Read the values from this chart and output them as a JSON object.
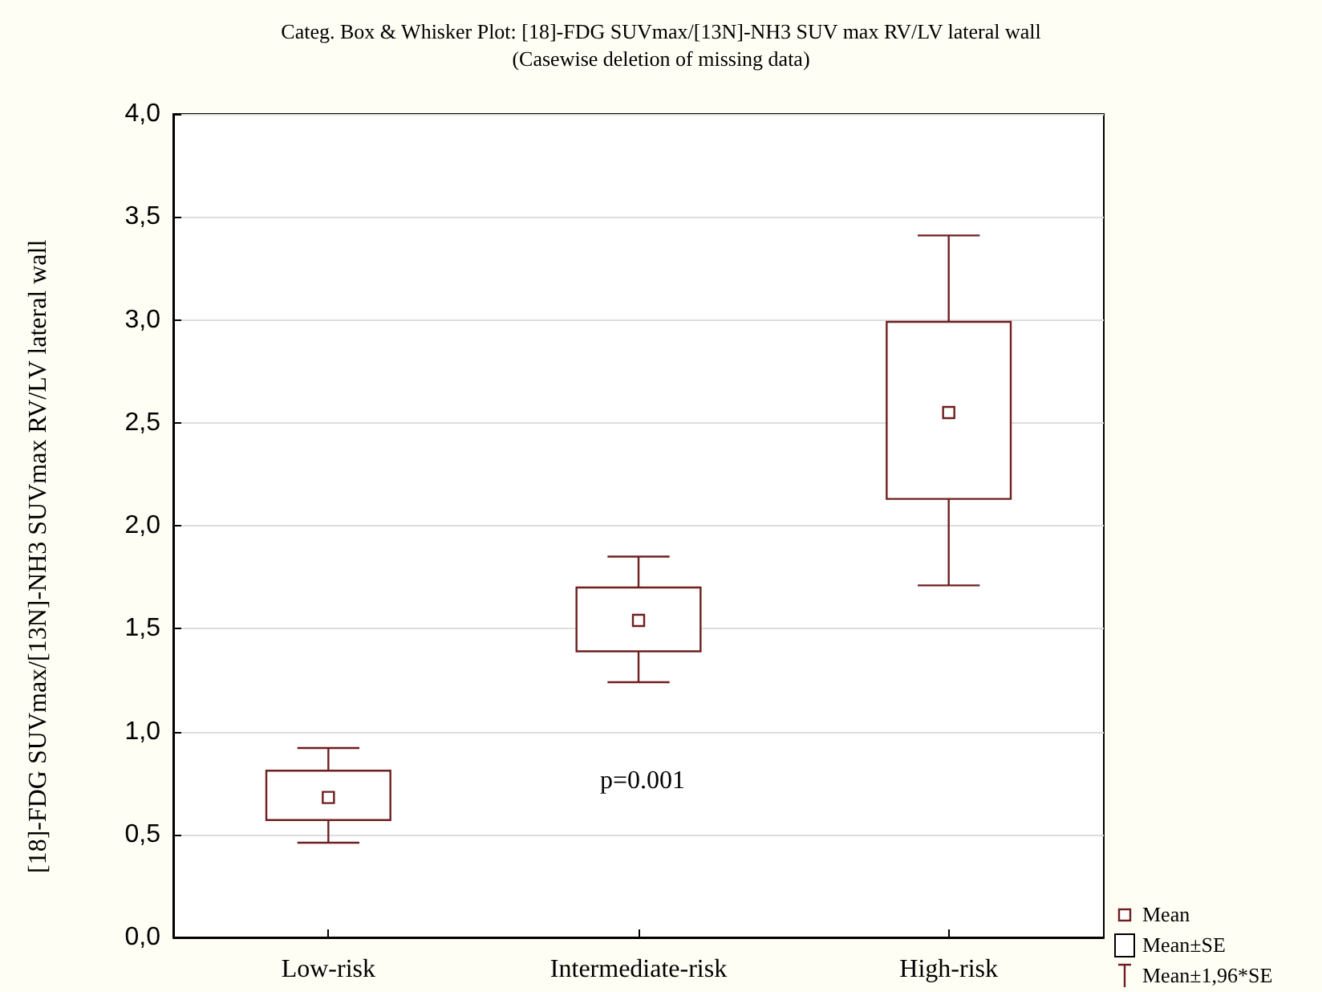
{
  "chart_data": {
    "type": "box",
    "title": "Categ. Box & Whisker Plot: [18]-FDG SUVmax/[13N]-NH3 SUV max RV/LV lateral wall",
    "subtitle": "(Casewise deletion of missing data)",
    "ylabel": "[18]-FDG SUVmax/[13N]-NH3 SUVmax RV/LV lateral wall",
    "categories": [
      "Low-risk",
      "Intermediate-risk",
      "High-risk"
    ],
    "series": [
      {
        "color": "#6e1f1f",
        "boxes": [
          {
            "low": 0.46,
            "q1": 0.57,
            "q3": 0.81,
            "high": 0.92,
            "mean": 0.68
          },
          {
            "low": 1.24,
            "q1": 1.39,
            "q3": 1.7,
            "high": 1.85,
            "mean": 1.54
          },
          {
            "low": 1.71,
            "q1": 2.13,
            "q3": 2.99,
            "high": 3.41,
            "mean": 2.55
          }
        ]
      }
    ],
    "ylim": [
      0,
      4
    ],
    "yticks": [
      {
        "value": 0,
        "label": "0,0"
      },
      {
        "value": 0.5,
        "label": "0,5"
      },
      {
        "value": 1,
        "label": "1,0"
      },
      {
        "value": 1.5,
        "label": "1,5"
      },
      {
        "value": 2,
        "label": "2,0"
      },
      {
        "value": 2.5,
        "label": "2,5"
      },
      {
        "value": 3,
        "label": "3,0"
      },
      {
        "value": 3.5,
        "label": "3,5"
      },
      {
        "value": 4,
        "label": "4,0"
      }
    ],
    "grid": "y",
    "annotations": [
      "p=0.001",
      "Mean",
      "Mean±SE",
      "Mean±1,96*SE"
    ]
  }
}
